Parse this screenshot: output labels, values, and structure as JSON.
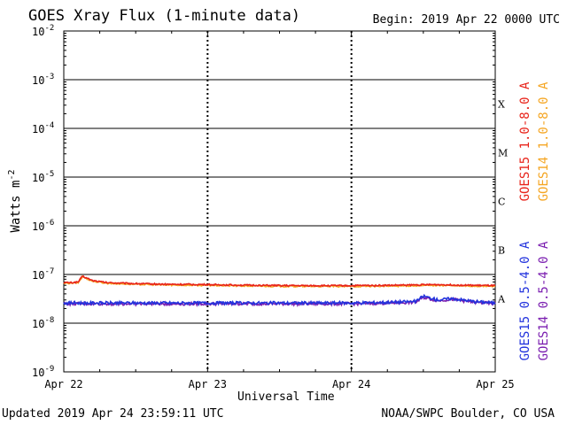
{
  "header": {
    "title": "GOES Xray Flux (1-minute data)",
    "begin": "Begin:  2019 Apr 22 0000 UTC"
  },
  "footer": {
    "updated": "Updated 2019 Apr 24 23:59:11 UTC",
    "credit": "NOAA/SWPC Boulder, CO USA"
  },
  "colors": {
    "goes15_long": "#e8231a",
    "goes14_long": "#f5a623",
    "goes15_short": "#2233dd",
    "goes14_short": "#7b1fb0",
    "grid": "#000000",
    "background": "#ffffff"
  },
  "chart_data": {
    "type": "line",
    "title": "GOES Xray Flux (1-minute data)",
    "xlabel": "Universal Time",
    "ylabel": "Watts m-2",
    "y_scale": "log",
    "ylim": [
      1e-09,
      0.01
    ],
    "xlim": [
      0,
      3
    ],
    "x_unit": "days since 2019 Apr 22 0000 UTC",
    "x_ticks": [
      {
        "x": 0,
        "label": "Apr 22"
      },
      {
        "x": 1,
        "label": "Apr 23"
      },
      {
        "x": 2,
        "label": "Apr 24"
      },
      {
        "x": 3,
        "label": "Apr 25"
      }
    ],
    "y_ticks": [
      {
        "exp": -2,
        "base": "10",
        "sup": "-2"
      },
      {
        "exp": -3,
        "base": "10",
        "sup": "-3"
      },
      {
        "exp": -4,
        "base": "10",
        "sup": "-4"
      },
      {
        "exp": -5,
        "base": "10",
        "sup": "-5"
      },
      {
        "exp": -6,
        "base": "10",
        "sup": "-6"
      },
      {
        "exp": -7,
        "base": "10",
        "sup": "-7"
      },
      {
        "exp": -8,
        "base": "10",
        "sup": "-8"
      },
      {
        "exp": -9,
        "base": "10",
        "sup": "-9"
      }
    ],
    "flare_classes": [
      {
        "label": "X",
        "exp": -3.5
      },
      {
        "label": "M",
        "exp": -4.5
      },
      {
        "label": "C",
        "exp": -5.5
      },
      {
        "label": "B",
        "exp": -6.5
      },
      {
        "label": "A",
        "exp": -7.5
      }
    ],
    "grid": true,
    "legend_placement": "right",
    "series": [
      {
        "name": "GOES15 1.0-8.0 A",
        "color": "#e8231a",
        "x": [
          0,
          0.05,
          0.1,
          0.13,
          0.2,
          0.3,
          0.5,
          0.7,
          1.0,
          1.3,
          1.6,
          2.0,
          2.3,
          2.6,
          2.8,
          3.0
        ],
        "y": [
          6.8e-08,
          6.8e-08,
          7e-08,
          9.2e-08,
          7.5e-08,
          6.8e-08,
          6.5e-08,
          6.3e-08,
          6.2e-08,
          6e-08,
          5.9e-08,
          5.9e-08,
          6e-08,
          6.2e-08,
          6e-08,
          5.9e-08
        ]
      },
      {
        "name": "GOES14 1.0-8.0 A",
        "color": "#f5a623",
        "x": [
          0,
          0.05,
          0.1,
          0.13,
          0.2,
          0.3,
          0.5,
          0.7,
          1.0,
          1.3,
          1.6,
          2.0,
          2.3,
          2.6,
          2.8,
          3.0
        ],
        "y": [
          6.6e-08,
          6.6e-08,
          6.8e-08,
          9e-08,
          7.3e-08,
          6.6e-08,
          6.3e-08,
          6.1e-08,
          6e-08,
          5.8e-08,
          5.7e-08,
          5.7e-08,
          5.8e-08,
          6e-08,
          5.8e-08,
          5.7e-08
        ]
      },
      {
        "name": "GOES15 0.5-4.0 A",
        "color": "#2233dd",
        "x": [
          0,
          0.2,
          0.5,
          0.8,
          1.0,
          1.3,
          1.6,
          2.0,
          2.3,
          2.45,
          2.5,
          2.6,
          2.7,
          2.85,
          3.0
        ],
        "y": [
          2.6e-08,
          2.6e-08,
          2.6e-08,
          2.6e-08,
          2.6e-08,
          2.6e-08,
          2.6e-08,
          2.6e-08,
          2.7e-08,
          2.8e-08,
          3.6e-08,
          3e-08,
          3.2e-08,
          2.8e-08,
          2.6e-08
        ]
      },
      {
        "name": "GOES14 0.5-4.0 A",
        "color": "#7b1fb0",
        "x": [
          0,
          0.2,
          0.5,
          0.8,
          1.0,
          1.3,
          1.6,
          2.0,
          2.3,
          2.45,
          2.5,
          2.6,
          2.7,
          2.85,
          3.0
        ],
        "y": [
          2.5e-08,
          2.5e-08,
          2.5e-08,
          2.5e-08,
          2.5e-08,
          2.5e-08,
          2.5e-08,
          2.5e-08,
          2.6e-08,
          2.7e-08,
          3.4e-08,
          2.9e-08,
          3.1e-08,
          2.7e-08,
          2.5e-08
        ]
      }
    ]
  }
}
